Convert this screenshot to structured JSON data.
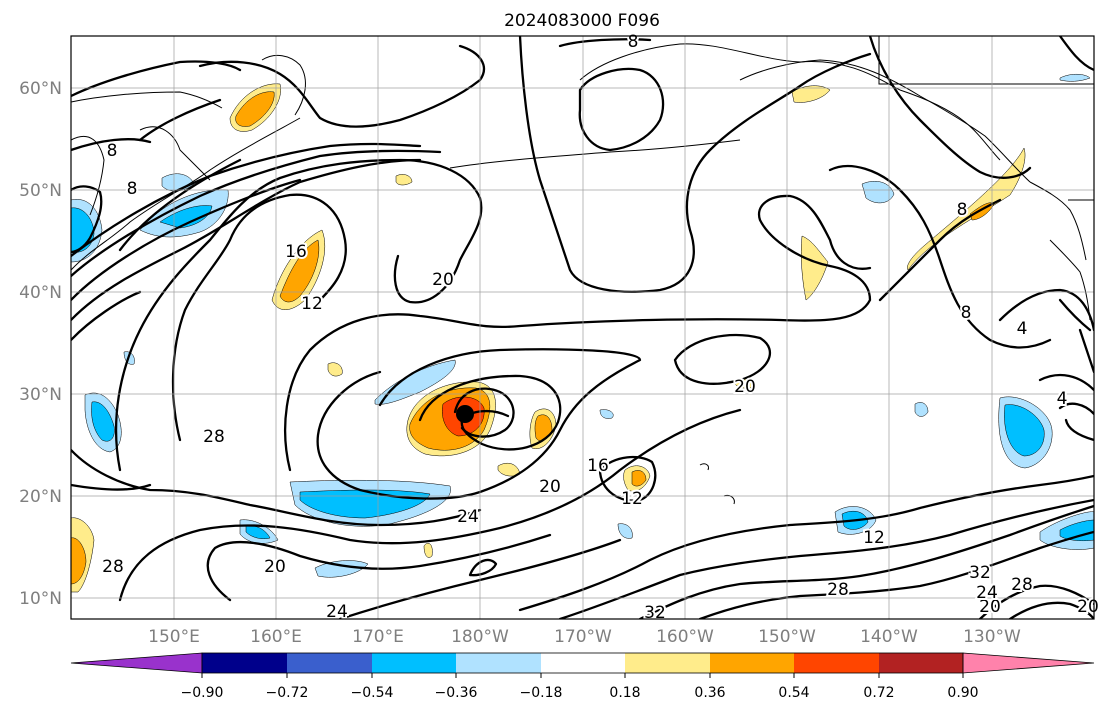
{
  "title": "2024083000 F096",
  "map": {
    "lat_labels": [
      "60°N",
      "50°N",
      "40°N",
      "30°N",
      "20°N",
      "10°N"
    ],
    "lon_labels": [
      "150°E",
      "160°E",
      "170°E",
      "180°W",
      "170°W",
      "160°W",
      "150°W",
      "140°W",
      "130°W"
    ],
    "contour_labels": [
      "8",
      "8",
      "8",
      "8",
      "16",
      "12",
      "20",
      "28",
      "20",
      "20",
      "24",
      "20",
      "16",
      "12",
      "20",
      "12",
      "28",
      "32",
      "28",
      "24",
      "20",
      "28",
      "24",
      "32",
      "4",
      "4",
      "8"
    ],
    "storm_marker": "black-dot"
  },
  "colorbar": {
    "tick_labels": [
      "−0.90",
      "−0.72",
      "−0.54",
      "−0.36",
      "−0.18",
      "0.18",
      "0.36",
      "0.54",
      "0.72",
      "0.90"
    ],
    "colors": [
      "#9932cc",
      "#00008b",
      "#3a5fcd",
      "#00bfff",
      "#b0e2ff",
      "#ffffff",
      "#ffec8b",
      "#ffa500",
      "#ff4500",
      "#b22222",
      "#ff82ab"
    ],
    "extend": "both"
  }
}
